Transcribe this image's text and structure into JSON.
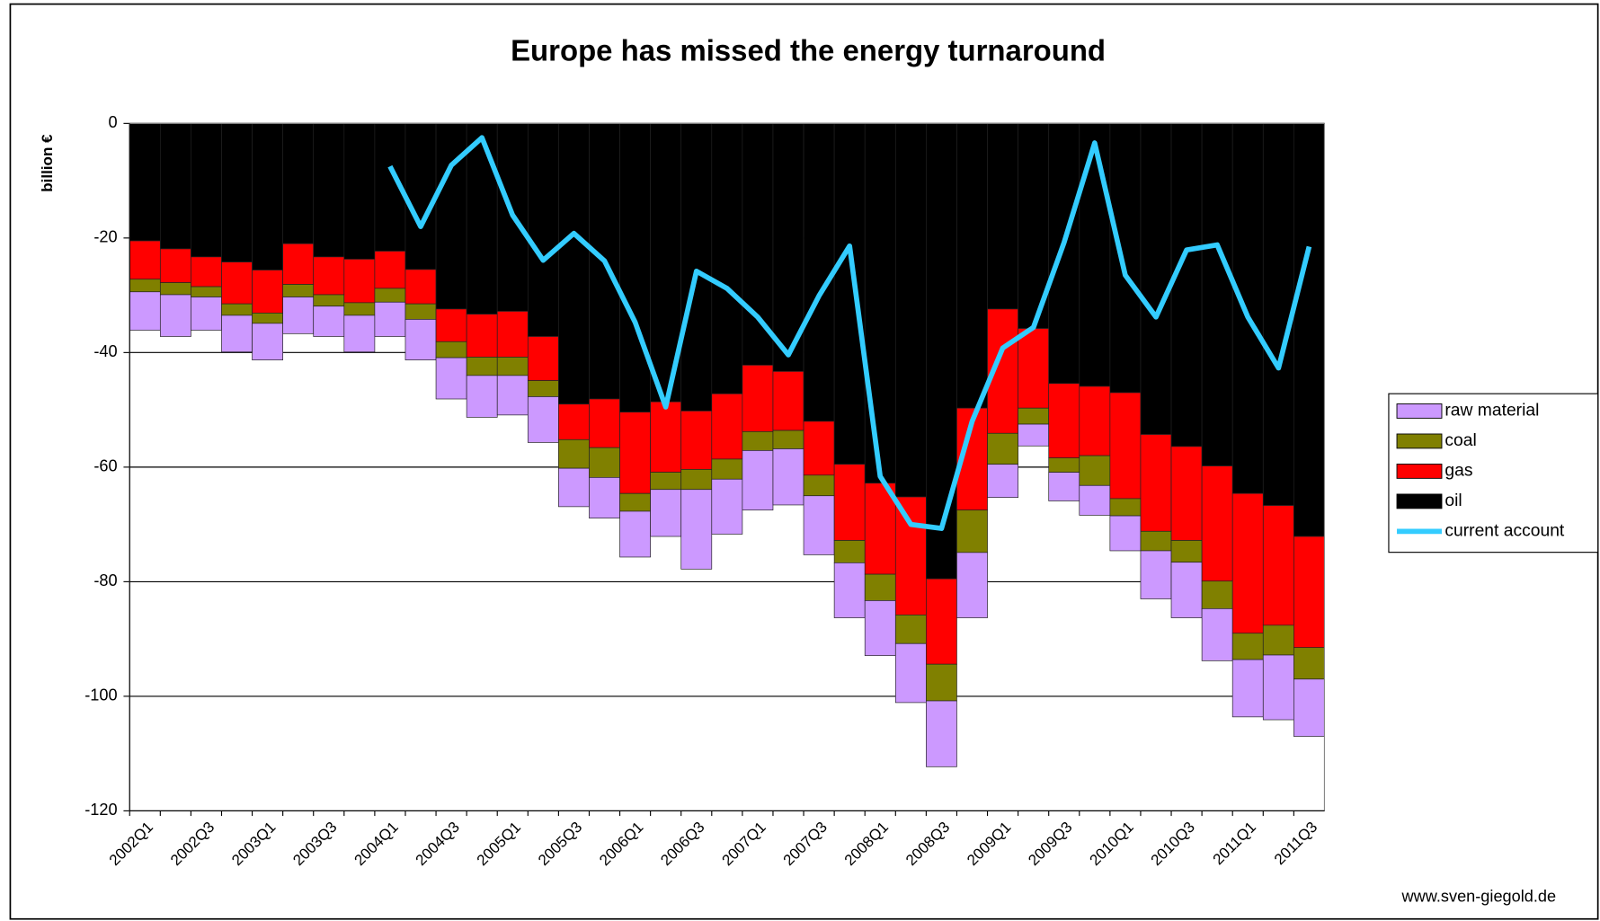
{
  "chart_data": {
    "type": "bar",
    "stacked": true,
    "title": "Europe has missed the energy turnaround",
    "y_label": "billion €",
    "source": "www.sven-giegold.de",
    "categories": [
      "2002Q1",
      null,
      "2002Q3",
      null,
      "2003Q1",
      null,
      "2003Q3",
      null,
      "2004Q1",
      null,
      "2004Q3",
      null,
      "2005Q1",
      null,
      "2005Q3",
      null,
      "2006Q1",
      null,
      "2006Q3",
      null,
      "2007Q1",
      null,
      "2007Q3",
      null,
      "2008Q1",
      null,
      "2008Q3",
      null,
      "2009Q1",
      null,
      "2009Q3",
      null,
      "2010Q1",
      null,
      "2010Q3",
      null,
      "2011Q1",
      null,
      "2011Q3"
    ],
    "ylim": [
      -120,
      0
    ],
    "yticks": [
      0,
      -20,
      -40,
      -60,
      -80,
      -100,
      -120
    ],
    "grid": true,
    "legend": "right",
    "series": [
      {
        "name": "oil",
        "color": "#000000",
        "values": [
          -20.5,
          -21.9,
          -23.3,
          -24.2,
          -25.6,
          -21.0,
          -23.3,
          -23.7,
          -22.3,
          -25.5,
          -32.4,
          -33.3,
          -32.8,
          -37.2,
          -49.0,
          -48.1,
          -50.4,
          -48.6,
          -50.2,
          -47.2,
          -42.2,
          -43.3,
          -52.0,
          -59.5,
          -62.8,
          -65.2,
          -79.5,
          -49.7,
          -32.4,
          -35.8,
          -45.4,
          -45.9,
          -47.0,
          -54.3,
          -56.4,
          -59.8,
          -64.6,
          -66.7,
          -72.1
        ]
      },
      {
        "name": "gas",
        "color": "#ff0000",
        "values": [
          -6.7,
          -5.9,
          -5.2,
          -7.3,
          -7.5,
          -7.1,
          -6.6,
          -7.6,
          -6.5,
          -6.0,
          -5.7,
          -7.5,
          -8.0,
          -7.7,
          -6.2,
          -8.5,
          -14.2,
          -12.3,
          -10.2,
          -11.4,
          -11.6,
          -10.3,
          -9.4,
          -13.3,
          -15.9,
          -20.6,
          -14.9,
          -17.8,
          -21.7,
          -13.9,
          -13.0,
          -12.1,
          -18.5,
          -16.9,
          -16.4,
          -20.1,
          -24.4,
          -20.9,
          -19.4
        ]
      },
      {
        "name": "coal",
        "color": "#808000",
        "values": [
          -2.2,
          -2.1,
          -1.8,
          -2.0,
          -1.8,
          -2.2,
          -2.0,
          -2.2,
          -2.4,
          -2.7,
          -2.8,
          -3.2,
          -3.2,
          -2.8,
          -5.0,
          -5.2,
          -3.1,
          -3.0,
          -3.5,
          -3.5,
          -3.3,
          -3.2,
          -3.6,
          -3.9,
          -4.6,
          -5.0,
          -6.4,
          -7.4,
          -5.4,
          -2.8,
          -2.5,
          -5.2,
          -3.0,
          -3.4,
          -3.8,
          -4.8,
          -4.6,
          -5.2,
          -5.5
        ]
      },
      {
        "name": "raw material",
        "color": "#cc99ff",
        "values": [
          -6.7,
          -7.3,
          -5.8,
          -6.4,
          -6.4,
          -6.4,
          -5.3,
          -6.4,
          -6.0,
          -7.1,
          -7.2,
          -7.3,
          -6.9,
          -8.0,
          -6.7,
          -7.1,
          -8.0,
          -8.2,
          -13.9,
          -9.6,
          -10.4,
          -9.8,
          -10.3,
          -9.6,
          -9.6,
          -10.3,
          -11.5,
          -11.4,
          -5.8,
          -3.8,
          -5.0,
          -5.2,
          -6.1,
          -8.4,
          -9.7,
          -9.1,
          -10.0,
          -11.3,
          -10.0
        ]
      },
      {
        "name": "current account",
        "type": "line",
        "color": "#33ccff",
        "values": [
          null,
          null,
          null,
          null,
          null,
          null,
          null,
          null,
          -7.5,
          -18.0,
          -7.3,
          -2.5,
          -16.0,
          -23.9,
          -19.2,
          -24.0,
          -34.7,
          -49.5,
          -25.8,
          -28.8,
          -33.8,
          -40.4,
          -30.1,
          -21.4,
          -61.6,
          -70.0,
          -70.7,
          -52.0,
          -39.2,
          -35.6,
          -20.8,
          -3.4,
          -26.5,
          -33.8,
          -22.1,
          -21.2,
          -33.8,
          -42.7,
          -21.5
        ]
      }
    ]
  }
}
